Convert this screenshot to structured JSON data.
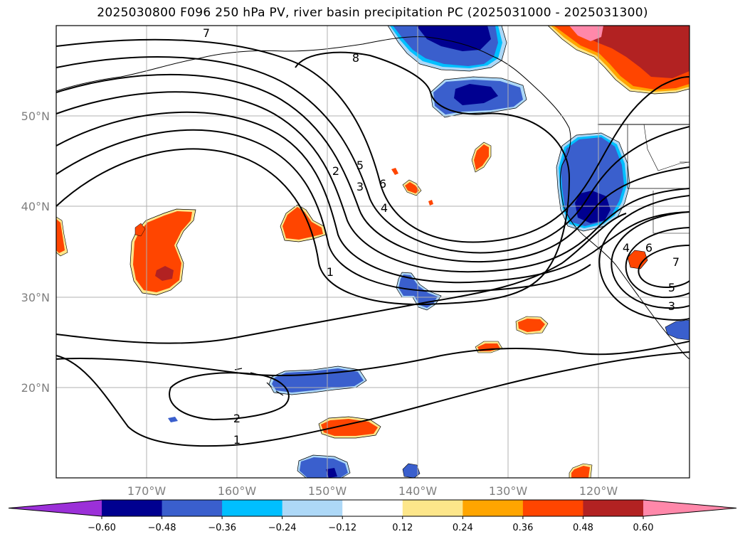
{
  "title": "2025030800 F096 250 hPa PV, river basin precipitation PC (2025031000 - 2025031300)",
  "chart_data": {
    "type": "filled contour map",
    "title": "2025030800 F096 250 hPa PV, river basin precipitation PC (2025031000 - 2025031300)",
    "xlim": [
      -180,
      -110
    ],
    "ylim": [
      10,
      60
    ],
    "grid": true,
    "lat_ticks": [
      {
        "value": 20,
        "label": "20°N"
      },
      {
        "value": 30,
        "label": "30°N"
      },
      {
        "value": 40,
        "label": "40°N"
      },
      {
        "value": 50,
        "label": "50°N"
      }
    ],
    "lon_ticks": [
      {
        "value": -170,
        "label": "170°W"
      },
      {
        "value": -160,
        "label": "160°W"
      },
      {
        "value": -150,
        "label": "150°W"
      },
      {
        "value": -140,
        "label": "140°W"
      },
      {
        "value": -130,
        "label": "130°W"
      },
      {
        "value": -120,
        "label": "120°W"
      }
    ],
    "colorbar": {
      "extend": "both",
      "boundaries": [
        -0.72,
        -0.6,
        -0.48,
        -0.36,
        -0.24,
        -0.12,
        0.12,
        0.24,
        0.36,
        0.48,
        0.6,
        0.72
      ],
      "colors": [
        "#9b30d8",
        "#000090",
        "#3a5fcd",
        "#00bfff",
        "#add8f7",
        "#ffffff",
        "#fde68a",
        "#ffa500",
        "#ff4500",
        "#b22222",
        "#ff88aa",
        "#ff88aa"
      ],
      "tick_labels": [
        "-0.60",
        "-0.48",
        "-0.36",
        "-0.24",
        "-0.12",
        "0.12",
        "0.24",
        "0.36",
        "0.48",
        "0.60"
      ]
    },
    "pv_contour_labels": [
      {
        "text": "8",
        "lon": -148,
        "lat": 56.5
      },
      {
        "text": "2",
        "lon": -150,
        "lat": 42.0
      },
      {
        "text": "5",
        "lon": -147,
        "lat": 42.5
      },
      {
        "text": "3",
        "lon": -147,
        "lat": 41.0
      },
      {
        "text": "6",
        "lon": -144,
        "lat": 41.5
      },
      {
        "text": "4",
        "lon": -143.5,
        "lat": 40.0
      },
      {
        "text": "1",
        "lon": -151.5,
        "lat": 32.5
      },
      {
        "text": "2",
        "lon": -159.5,
        "lat": 16.5
      },
      {
        "text": "1",
        "lon": -160,
        "lat": 14.0
      },
      {
        "text": "7",
        "lon": -112,
        "lat": 34.5
      },
      {
        "text": "6",
        "lon": -114.5,
        "lat": 36.5
      },
      {
        "text": "4",
        "lon": -117,
        "lat": 36.5
      },
      {
        "text": "5",
        "lon": -112.5,
        "lat": 31.0
      },
      {
        "text": "3",
        "lon": -112.5,
        "lat": 29.0
      },
      {
        "text": "7",
        "lon": -166.5,
        "lat": 59.0
      }
    ]
  }
}
